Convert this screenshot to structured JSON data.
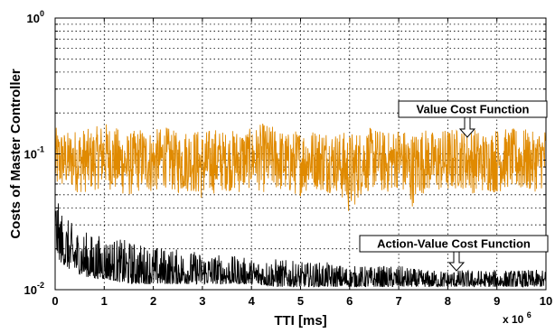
{
  "chart_data": {
    "type": "line",
    "title": "",
    "xlabel": "TTI [ms]",
    "ylabel": "Costs of Master Controller",
    "x_tick_labels": [
      "0",
      "1",
      "2",
      "3",
      "4",
      "5",
      "6",
      "7",
      "8",
      "9",
      "10"
    ],
    "x_multiplier": "x 10",
    "x_multiplier_exponent": "6",
    "xlim": [
      0,
      10
    ],
    "y_scale": "log",
    "ylim": [
      0.01,
      1
    ],
    "y_tick_labels": [
      {
        "base": "10",
        "exp": "0",
        "value": 1
      },
      {
        "base": "10",
        "exp": "-1",
        "value": 0.1
      },
      {
        "base": "10",
        "exp": "-2",
        "value": 0.01
      }
    ],
    "grid": true,
    "series": [
      {
        "name": "Value Cost Function",
        "color": "#e08a00",
        "x": [
          0,
          0.25,
          0.5,
          0.75,
          1,
          1.25,
          1.5,
          1.75,
          2,
          2.25,
          2.5,
          2.75,
          3,
          3.25,
          3.5,
          3.75,
          4,
          4.25,
          4.5,
          4.75,
          5,
          5.25,
          5.5,
          5.75,
          6,
          6.25,
          6.5,
          6.75,
          7,
          7.25,
          7.5,
          7.75,
          8,
          8.25,
          8.5,
          8.75,
          9,
          9.25,
          9.5,
          9.75,
          10
        ],
        "y_low": [
          0.04,
          0.045,
          0.04,
          0.042,
          0.045,
          0.04,
          0.038,
          0.042,
          0.04,
          0.045,
          0.04,
          0.042,
          0.035,
          0.04,
          0.043,
          0.04,
          0.045,
          0.04,
          0.042,
          0.04,
          0.038,
          0.045,
          0.04,
          0.042,
          0.025,
          0.04,
          0.043,
          0.04,
          0.045,
          0.03,
          0.04,
          0.042,
          0.04,
          0.045,
          0.04,
          0.042,
          0.04,
          0.045,
          0.04,
          0.042,
          0.045
        ],
        "y_high": [
          0.2,
          0.18,
          0.2,
          0.19,
          0.22,
          0.2,
          0.18,
          0.2,
          0.19,
          0.2,
          0.18,
          0.2,
          0.19,
          0.2,
          0.18,
          0.2,
          0.19,
          0.22,
          0.2,
          0.18,
          0.2,
          0.19,
          0.2,
          0.18,
          0.2,
          0.19,
          0.2,
          0.18,
          0.2,
          0.19,
          0.2,
          0.18,
          0.2,
          0.19,
          0.2,
          0.18,
          0.2,
          0.19,
          0.2,
          0.18,
          0.2
        ]
      },
      {
        "name": "Action-Value Cost Function",
        "color": "#000000",
        "x": [
          0,
          0.05,
          0.1,
          0.2,
          0.3,
          0.5,
          0.75,
          1,
          1.5,
          2,
          2.5,
          3,
          3.5,
          4,
          4.5,
          5,
          5.5,
          6,
          6.5,
          7,
          7.5,
          8,
          8.5,
          9,
          9.5,
          10
        ],
        "y_low": [
          0.02,
          0.018,
          0.016,
          0.015,
          0.014,
          0.013,
          0.012,
          0.012,
          0.011,
          0.011,
          0.011,
          0.011,
          0.011,
          0.011,
          0.0105,
          0.0105,
          0.0105,
          0.0105,
          0.0105,
          0.0105,
          0.0105,
          0.0105,
          0.0105,
          0.0105,
          0.0105,
          0.0105
        ],
        "y_high": [
          0.055,
          0.045,
          0.04,
          0.035,
          0.032,
          0.028,
          0.026,
          0.025,
          0.023,
          0.021,
          0.02,
          0.019,
          0.018,
          0.017,
          0.017,
          0.016,
          0.016,
          0.015,
          0.015,
          0.015,
          0.014,
          0.014,
          0.014,
          0.014,
          0.014,
          0.014
        ]
      }
    ],
    "annotations": [
      {
        "text": "Value Cost Function",
        "target_x": 8.3,
        "target_y": 0.14
      },
      {
        "text": "Action-Value Cost Function",
        "target_x": 8.3,
        "target_y": 0.013
      }
    ]
  }
}
